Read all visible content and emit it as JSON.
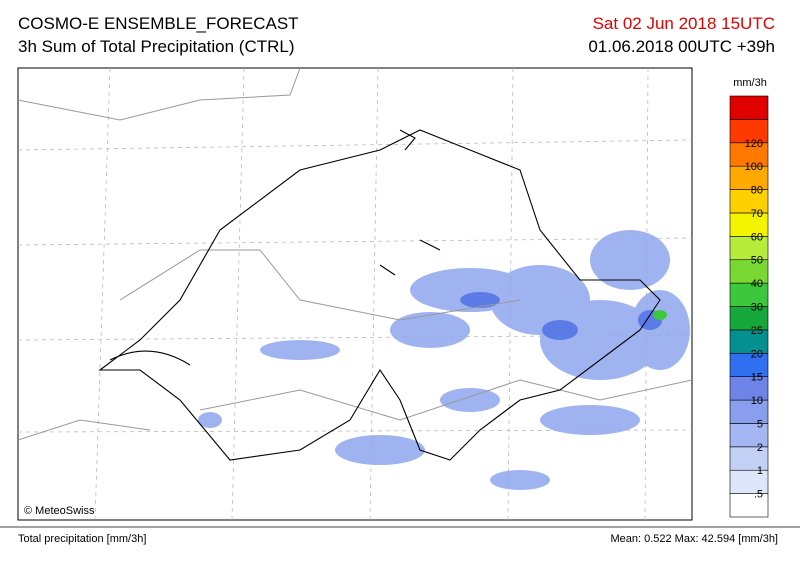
{
  "header": {
    "title": "COSMO-E ENSEMBLE_FORECAST",
    "subtitle": "3h Sum of Total Precipitation (CTRL)",
    "valid_time": "Sat 02 Jun 2018 15UTC",
    "run": "01.06.2018 00UTC +39h"
  },
  "map": {
    "copyright": "© MeteoSwiss"
  },
  "legend": {
    "unit": "mm/3h",
    "labels": [
      ".5",
      "1",
      "2",
      "5",
      "10",
      "15",
      "20",
      "25",
      "30",
      "40",
      "50",
      "60",
      "70",
      "80",
      "100",
      "120"
    ],
    "colors": [
      "#ffffff",
      "#dde6fa",
      "#c2d0f6",
      "#a5b7f2",
      "#8a9eee",
      "#6f84e8",
      "#2f6ff0",
      "#049090",
      "#16a83a",
      "#3cc83c",
      "#7ad832",
      "#b8ec3a",
      "#f4f400",
      "#ffd000",
      "#ffa800",
      "#ff7800",
      "#ff3a00",
      "#e00000"
    ]
  },
  "footer": {
    "left": "Total precipitation [mm/3h]",
    "right": "Mean:  0.522 Max: 42.594 [mm/3h]"
  }
}
